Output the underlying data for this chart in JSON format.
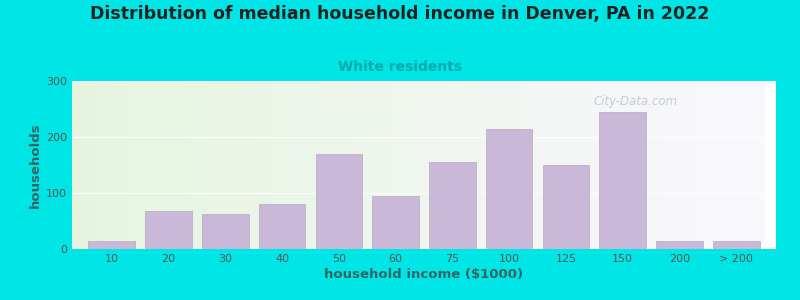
{
  "title": "Distribution of median household income in Denver, PA in 2022",
  "subtitle": "White residents",
  "xlabel": "household income ($1000)",
  "ylabel": "households",
  "bar_color": "#c9b8d8",
  "bar_edge_color": "#b8a8c8",
  "title_fontsize": 12.5,
  "subtitle_fontsize": 10,
  "subtitle_color": "#00aaaa",
  "ylabel_color": "#336666",
  "xlabel_color": "#336666",
  "title_color": "#222222",
  "background_outer": "#00e5e5",
  "categories": [
    "10",
    "20",
    "30",
    "40",
    "50",
    "60",
    "75",
    "100",
    "125",
    "150",
    "200",
    "> 200"
  ],
  "values": [
    15,
    68,
    62,
    80,
    170,
    95,
    155,
    215,
    150,
    245,
    15,
    15
  ],
  "ylim_min": 0,
  "ylim_max": 300,
  "yticks": [
    0,
    100,
    200,
    300
  ],
  "watermark": "City-Data.com"
}
